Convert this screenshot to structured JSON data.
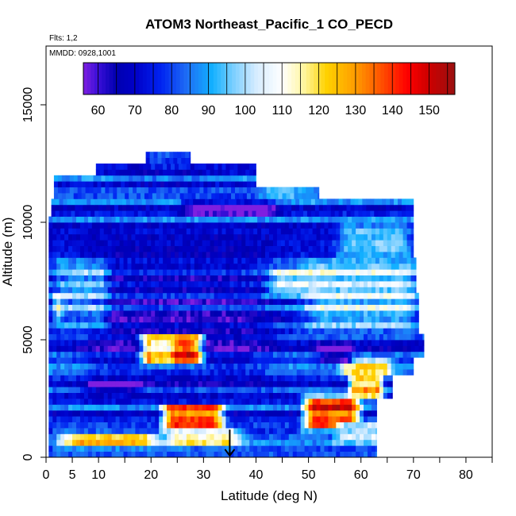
{
  "chart_data": {
    "type": "heatmap",
    "title": "ATOM3 Northeast_Pacific_1 CO_PECD",
    "subtitle_flights": "Flts: 1,2",
    "subtitle_dates": "MMDD: 0928,1001",
    "xlabel": "Latitude (deg N)",
    "ylabel": "Altitude (m)",
    "xlim": [
      0,
      85
    ],
    "ylim": [
      0,
      17500
    ],
    "x_ticks": [
      0,
      5,
      10,
      20,
      30,
      40,
      50,
      60,
      70,
      80
    ],
    "x_minor_ticks": [
      15,
      25,
      35,
      45,
      55,
      65,
      75,
      85
    ],
    "y_ticks": [
      0,
      5000,
      10000,
      15000
    ],
    "y_tick_labels": [
      "0",
      "5000",
      "10000",
      "15000"
    ],
    "colorbar": {
      "range": [
        56,
        157
      ],
      "tick_values": [
        60,
        70,
        80,
        90,
        100,
        110,
        120,
        130,
        140,
        150
      ],
      "tick_labels": [
        "60",
        "70",
        "80",
        "90",
        "100",
        "110",
        "120",
        "130",
        "140",
        "150"
      ],
      "stops": [
        {
          "value": 56,
          "color": "#7f1fe0"
        },
        {
          "value": 60,
          "color": "#3a0fd8"
        },
        {
          "value": 65,
          "color": "#0000b0"
        },
        {
          "value": 70,
          "color": "#0000c8"
        },
        {
          "value": 77,
          "color": "#0022f0"
        },
        {
          "value": 84,
          "color": "#1e6cf5"
        },
        {
          "value": 91,
          "color": "#12b0ff"
        },
        {
          "value": 97,
          "color": "#7fd0ff"
        },
        {
          "value": 103,
          "color": "#d6ecff"
        },
        {
          "value": 110,
          "color": "#ffffff"
        },
        {
          "value": 116,
          "color": "#fff6a0"
        },
        {
          "value": 122,
          "color": "#ffd200"
        },
        {
          "value": 130,
          "color": "#ff9c00"
        },
        {
          "value": 137,
          "color": "#ff5000"
        },
        {
          "value": 144,
          "color": "#ff0000"
        },
        {
          "value": 150,
          "color": "#cc0000"
        },
        {
          "value": 157,
          "color": "#9a1010"
        }
      ]
    },
    "domain_by_altitude": [
      {
        "alt_min": 0,
        "alt_max": 2500,
        "lat_min": 0.5,
        "lat_max": 63
      },
      {
        "alt_min": 2500,
        "alt_max": 3500,
        "lat_min": 0.5,
        "lat_max": 66
      },
      {
        "alt_min": 3500,
        "alt_max": 4200,
        "lat_min": 0.5,
        "lat_max": 70
      },
      {
        "alt_min": 4200,
        "alt_max": 5200,
        "lat_min": 0.5,
        "lat_max": 72
      },
      {
        "alt_min": 5200,
        "alt_max": 7000,
        "lat_min": 0.5,
        "lat_max": 71
      },
      {
        "alt_min": 7000,
        "alt_max": 8500,
        "lat_min": 0.5,
        "lat_max": 70.5
      },
      {
        "alt_min": 8500,
        "alt_max": 10200,
        "lat_min": 0.5,
        "lat_max": 70
      },
      {
        "alt_min": 10200,
        "alt_max": 11000,
        "lat_min": 1,
        "lat_max": 70
      },
      {
        "alt_min": 11000,
        "alt_max": 11500,
        "lat_min": 1.5,
        "lat_max": 52
      },
      {
        "alt_min": 11500,
        "alt_max": 12000,
        "lat_min": 1.5,
        "lat_max": 40
      },
      {
        "alt_min": 12000,
        "alt_max": 12400,
        "lat_min": 9.5,
        "lat_max": 40
      },
      {
        "alt_min": 12400,
        "alt_max": 13000,
        "lat_min": 19,
        "lat_max": 27.5
      }
    ],
    "features": [
      {
        "lat_min": 0,
        "lat_max": 90,
        "alt_min": 0,
        "alt_max": 17500,
        "value": 78,
        "weight": 1
      },
      {
        "lat_min": 5,
        "lat_max": 45,
        "alt_min": 2500,
        "alt_max": 9500,
        "value": 68,
        "weight": 1
      },
      {
        "lat_min": 18,
        "lat_max": 30,
        "alt_min": 4000,
        "alt_max": 5200,
        "value": 145,
        "weight": 1
      },
      {
        "lat_min": 20,
        "lat_max": 24,
        "alt_min": 4000,
        "alt_max": 5200,
        "value": 118,
        "weight": 1
      },
      {
        "lat_min": 22,
        "lat_max": 34,
        "alt_min": 1200,
        "alt_max": 2200,
        "value": 140,
        "weight": 1
      },
      {
        "lat_min": 49,
        "lat_max": 60,
        "alt_min": 1200,
        "alt_max": 2600,
        "value": 142,
        "weight": 1
      },
      {
        "lat_min": 58,
        "lat_max": 64,
        "alt_min": 2500,
        "alt_max": 3500,
        "value": 125,
        "weight": 1
      },
      {
        "lat_min": 56,
        "lat_max": 66,
        "alt_min": 3500,
        "alt_max": 4100,
        "value": 112,
        "weight": 1
      },
      {
        "lat_min": 2,
        "lat_max": 22,
        "alt_min": 500,
        "alt_max": 1000,
        "value": 118,
        "weight": 1
      },
      {
        "lat_min": 22,
        "lat_max": 38,
        "alt_min": 500,
        "alt_max": 1200,
        "value": 108,
        "weight": 1
      },
      {
        "lat_min": 2,
        "lat_max": 5,
        "alt_min": 5800,
        "alt_max": 7000,
        "value": 115,
        "weight": 1
      },
      {
        "lat_min": 48,
        "lat_max": 72,
        "alt_min": 5200,
        "alt_max": 8500,
        "value": 98,
        "weight": 1
      },
      {
        "lat_min": 55,
        "lat_max": 70,
        "alt_min": 8500,
        "alt_max": 10000,
        "value": 100,
        "weight": 1
      },
      {
        "lat_min": 25,
        "lat_max": 45,
        "alt_min": 10300,
        "alt_max": 10900,
        "value": 60,
        "weight": 1
      },
      {
        "lat_min": 28,
        "lat_max": 38,
        "alt_min": 10400,
        "alt_max": 11000,
        "value": 62,
        "weight": 1
      },
      {
        "lat_min": 52,
        "lat_max": 58,
        "alt_min": 4000,
        "alt_max": 4800,
        "value": 60,
        "weight": 1
      },
      {
        "lat_min": 2,
        "lat_max": 12,
        "alt_min": 5200,
        "alt_max": 8500,
        "value": 90,
        "weight": 1
      },
      {
        "lat_min": 42,
        "lat_max": 55,
        "alt_min": 7000,
        "alt_max": 8000,
        "value": 100,
        "weight": 1
      },
      {
        "lat_min": 8,
        "lat_max": 18,
        "alt_min": 2800,
        "alt_max": 3200,
        "value": 60,
        "weight": 1
      },
      {
        "lat_min": 15,
        "lat_max": 30,
        "alt_min": 11500,
        "alt_max": 12400,
        "value": 75,
        "weight": 1
      },
      {
        "lat_min": 19,
        "lat_max": 27.5,
        "alt_min": 12400,
        "alt_max": 13000,
        "value": 82,
        "weight": 1
      },
      {
        "lat_min": 40,
        "lat_max": 52,
        "alt_min": 11000,
        "alt_max": 11500,
        "value": 88,
        "weight": 1
      },
      {
        "lat_min": 55,
        "lat_max": 66,
        "alt_min": 700,
        "alt_max": 1500,
        "value": 100,
        "weight": 1
      }
    ],
    "annotations": [
      {
        "type": "arrow",
        "lat": 35,
        "alt_from": 500,
        "alt_to": 0,
        "direction": "down"
      }
    ]
  }
}
